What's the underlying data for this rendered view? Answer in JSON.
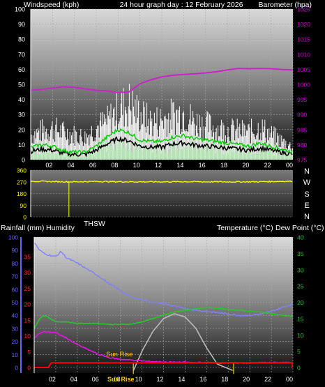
{
  "header": {
    "left": "Windspeed (kph)",
    "center": "24 hour graph day : 12 February 2026",
    "right": "Barometer (hpa)"
  },
  "wind_direction": {
    "label": "THSW",
    "compass": [
      "N",
      "W",
      "S",
      "E",
      "N"
    ]
  },
  "bottom_header": {
    "left1": "Rainfall (mm)",
    "left2": "Humidity",
    "right": "Temperature (°C)",
    "right2": "Dew Point (°C)"
  },
  "sun_labels": {
    "rise": "Sun Rise",
    "set": "Sun Rise"
  },
  "colors": {
    "gust": "#ffffff",
    "speed_avg": "#00cc00",
    "speed_black": "#000000",
    "speed_light": "#bff0bf",
    "barometer": "#cc22cc",
    "direction": "#ffff00",
    "humidity": "#8080ff",
    "temperature": "#22cc22",
    "dew_point": "#ee11ee",
    "rainfall": "#ff0000",
    "solar": "#bbbbbb",
    "axis_wind": "#ffffff",
    "axis_baro": "#cc00cc",
    "axis_rain": "#ff3333",
    "axis_hum": "#6666ff",
    "axis_temp": "#22cc22",
    "sun_marker": "#ffcc00"
  },
  "chart_data": [
    {
      "type": "line",
      "title": "24 hour graph day : 12 February 2026",
      "x_ticks": [
        "02",
        "04",
        "06",
        "08",
        "10",
        "12",
        "14",
        "16",
        "18",
        "20",
        "22",
        "00"
      ],
      "x_hours": [
        2,
        4,
        6,
        8,
        10,
        12,
        14,
        16,
        18,
        20,
        22,
        24
      ],
      "left_axis": {
        "label": "Windspeed (kph)",
        "ticks": [
          0,
          10,
          20,
          30,
          40,
          50,
          60,
          70,
          80,
          90,
          100
        ],
        "range": [
          0,
          100
        ]
      },
      "right_axis": {
        "label": "Barometer (hpa)",
        "ticks": [
          975,
          980,
          985,
          990,
          995,
          1000,
          1005,
          1010,
          1015,
          1020,
          1025
        ],
        "range": [
          975,
          1025
        ]
      },
      "series": [
        {
          "name": "Gust",
          "axis": "left",
          "x": [
            0,
            1,
            2,
            3,
            4,
            5,
            6,
            7,
            8,
            9,
            10,
            11,
            12,
            13,
            14,
            15,
            16,
            17,
            18,
            19,
            20,
            21,
            22,
            23,
            24
          ],
          "values": [
            20,
            23,
            25,
            22,
            20,
            18,
            26,
            30,
            40,
            45,
            36,
            30,
            32,
            35,
            38,
            30,
            28,
            25,
            24,
            23,
            22,
            26,
            20,
            15,
            10
          ]
        },
        {
          "name": "Average",
          "axis": "left",
          "x": [
            0,
            1,
            2,
            3,
            4,
            5,
            6,
            7,
            8,
            9,
            10,
            11,
            12,
            13,
            14,
            15,
            16,
            17,
            18,
            19,
            20,
            21,
            22,
            23,
            24
          ],
          "values": [
            8,
            10,
            9,
            6,
            5,
            5,
            9,
            15,
            20,
            18,
            13,
            12,
            12,
            15,
            16,
            14,
            13,
            12,
            11,
            10,
            9,
            11,
            9,
            7,
            5
          ]
        },
        {
          "name": "Barometer",
          "axis": "right",
          "x": [
            0,
            1,
            2,
            3,
            4,
            5,
            6,
            7,
            8,
            9,
            10,
            11,
            12,
            13,
            14,
            15,
            16,
            17,
            18,
            19,
            20,
            21,
            22,
            23,
            24
          ],
          "values": [
            998,
            998.3,
            998.8,
            999.2,
            999,
            998.5,
            998,
            997.8,
            997.3,
            997.5,
            1000.2,
            1001.5,
            1002.5,
            1003,
            1003.3,
            1003.5,
            1003.8,
            1004.2,
            1004.8,
            1005.3,
            1005.2,
            1005.3,
            1005.2,
            1004.9,
            1004.8
          ]
        }
      ]
    },
    {
      "type": "line",
      "x_hours": [
        2,
        4,
        6,
        8,
        10,
        12,
        14,
        16,
        18,
        20,
        22,
        24
      ],
      "left_axis": {
        "label": "",
        "ticks": [
          0,
          90,
          180,
          270,
          360
        ],
        "range": [
          0,
          360
        ]
      },
      "series": [
        {
          "name": "THSW",
          "axis": "left",
          "x": [
            0,
            2,
            4,
            6,
            8,
            10,
            12,
            14,
            16,
            18,
            20,
            22,
            24
          ],
          "values": [
            275,
            272,
            270,
            273,
            271,
            270,
            270,
            271,
            270,
            270,
            270,
            272,
            275
          ]
        }
      ]
    },
    {
      "type": "line",
      "x_ticks": [
        "02",
        "04",
        "06",
        "08",
        "10",
        "12",
        "14",
        "16",
        "18",
        "20",
        "22",
        "00"
      ],
      "x_hours": [
        2,
        4,
        6,
        8,
        10,
        12,
        14,
        16,
        18,
        20,
        22,
        24
      ],
      "rain_axis": {
        "label": "Rainfall (mm)",
        "ticks": [
          0,
          5,
          10,
          15,
          20,
          25,
          30,
          35
        ],
        "range": [
          0,
          35
        ]
      },
      "humidity_axis": {
        "label": "Humidity",
        "ticks": [
          0,
          10,
          20,
          30,
          40,
          50,
          60,
          70,
          80,
          90,
          100
        ],
        "range": [
          0,
          100
        ]
      },
      "temp_axis": {
        "label": "Temperature (°C)",
        "ticks": [
          0,
          5,
          10,
          15,
          20,
          25,
          30,
          35,
          40
        ],
        "range": [
          -2,
          40
        ]
      },
      "series": [
        {
          "name": "Humidity",
          "axis": "humidity",
          "x": [
            0,
            0.5,
            1,
            1.5,
            2,
            2.5,
            3,
            4,
            5,
            6,
            7,
            8,
            9,
            10,
            11,
            12,
            13,
            14,
            15,
            16,
            17,
            18,
            19,
            20,
            21,
            22,
            23,
            24
          ],
          "values": [
            96,
            90,
            87,
            86,
            85,
            89,
            84,
            80,
            75,
            70,
            64,
            59,
            54,
            52,
            50,
            49,
            47,
            45,
            44,
            43,
            42,
            41,
            40,
            40,
            41,
            43,
            46,
            49
          ]
        },
        {
          "name": "Temperature",
          "axis": "temp",
          "x": [
            0,
            0.5,
            1,
            2,
            3,
            4,
            5,
            6,
            7,
            8,
            9,
            10,
            11,
            12,
            13,
            14,
            15,
            16,
            17,
            18,
            19,
            20,
            21,
            22,
            23,
            24
          ],
          "values": [
            12,
            15,
            16,
            14,
            14,
            13.5,
            13.5,
            13.5,
            13.2,
            13.2,
            13.3,
            14,
            15,
            16,
            17,
            17.5,
            18,
            18.3,
            18.2,
            17.8,
            17.5,
            17.3,
            17,
            16.5,
            16,
            15.7
          ]
        },
        {
          "name": "Dew Point",
          "axis": "temp",
          "x": [
            0,
            0.5,
            1,
            2,
            3,
            4,
            5,
            6,
            7,
            8,
            9,
            10,
            11,
            12,
            13,
            14,
            15,
            16,
            17,
            18,
            19,
            20,
            21,
            22,
            23,
            24
          ],
          "values": [
            9,
            10.5,
            11,
            10.7,
            9,
            7,
            5.5,
            4,
            3,
            2.5,
            2.3,
            2,
            1.8,
            1.7,
            1.6,
            1.6,
            1.5,
            1.5,
            1.4,
            1.4,
            1.4,
            1.4,
            1.5,
            1.5,
            1.5,
            1.5
          ]
        },
        {
          "name": "Rainfall",
          "axis": "rain",
          "x": [
            0,
            1.3,
            1.6,
            24
          ],
          "values": [
            0,
            0,
            1.5,
            1.5
          ]
        },
        {
          "name": "Solar",
          "axis": "temp",
          "x": [
            9.2,
            10,
            11,
            12,
            13,
            14,
            15,
            16,
            17,
            18.5
          ],
          "values": [
            -1,
            5,
            11,
            15,
            16.5,
            15.5,
            12,
            6,
            1,
            -1
          ]
        }
      ]
    }
  ]
}
